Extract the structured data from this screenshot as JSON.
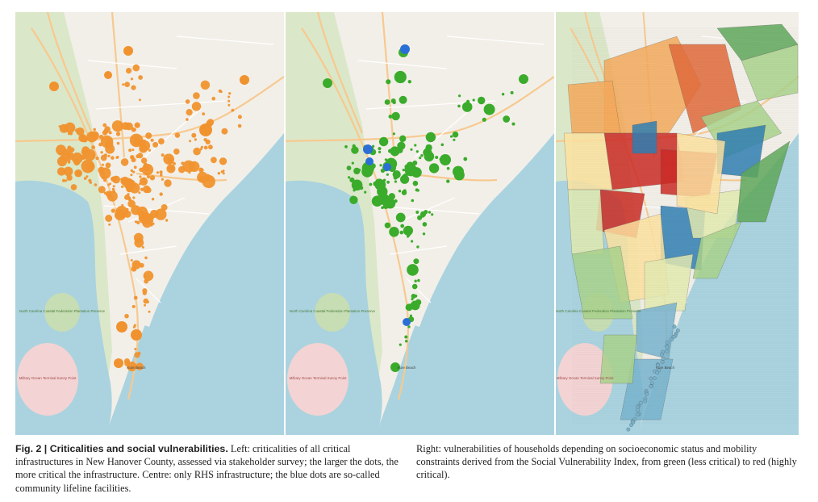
{
  "figure": {
    "label": "Fig. 2",
    "separator": " | ",
    "title": "Criticalities and social vulnerabilities.",
    "caption_left": " Left: criticalities of all critical infrastructures in New Hanover County, assessed via stakeholder survey; the larger the dots, the more critical the infrastructure. Centre: only RHS infrastructure; the blue dots are so-called community lifeline facilities.",
    "caption_right": "Right: vulnerabilities of households depending on socioeconomic status and mobility constraints derived from the Social Vulnerability Index, from green (less critical) to red (highly critical)."
  },
  "colors": {
    "land": "#f2efe9",
    "water": "#aad3df",
    "marsh": "#dbe7c9",
    "forest": "#c7ddb3",
    "military_zone": "#f3d3d3",
    "roads_major": "#f7c98f",
    "roads_minor": "#ffffff",
    "criticality_dot": "#f0922e",
    "rhs_dot": "#3bab2b",
    "lifeline_dot": "#2a6fd6",
    "svi_scale": [
      "#5fa85a",
      "#a9d28c",
      "#e3eab0",
      "#fde2a0",
      "#f4a95c",
      "#e06a3a",
      "#cc2a24",
      "#2f7fb3",
      "#78b4cf"
    ]
  },
  "map_labels": {
    "park": "North Carolina Coastal Federation Plantation Preserve",
    "military": "Military Ocean Terminal Sunny Point",
    "beach": "Kure Beach"
  }
}
